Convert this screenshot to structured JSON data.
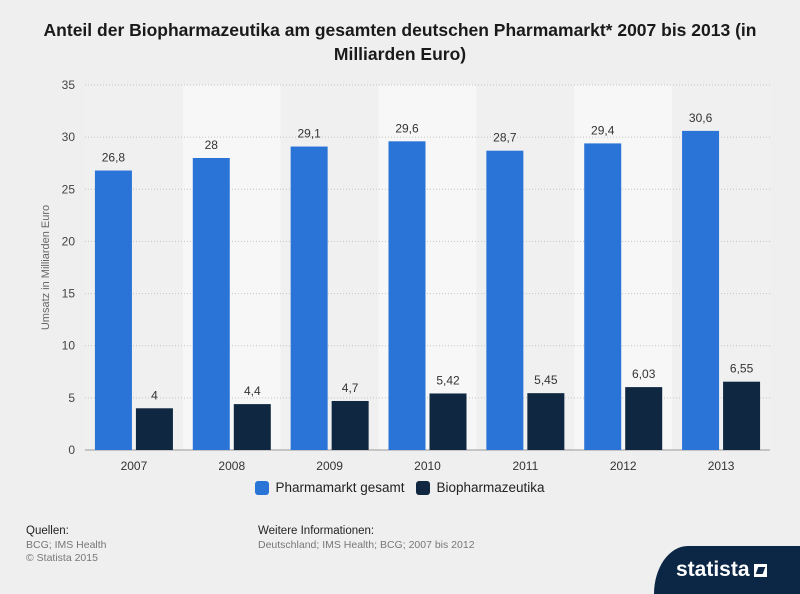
{
  "title": "Anteil der Biopharmazeutika am gesamten deutschen Pharmamarkt* 2007 bis 2013 (in Milliarden Euro)",
  "chart_data": {
    "type": "bar",
    "title": "Anteil der Biopharmazeutika am gesamten deutschen Pharmamarkt* 2007 bis 2013 (in Milliarden Euro)",
    "xlabel": "",
    "ylabel": "Umsatz in Milliarden Euro",
    "ylim": [
      0,
      35
    ],
    "yticks": [
      0,
      5,
      10,
      15,
      20,
      25,
      30,
      35
    ],
    "grid": true,
    "legend_position": "bottom",
    "categories": [
      "2007",
      "2008",
      "2009",
      "2010",
      "2011",
      "2012",
      "2013"
    ],
    "series": [
      {
        "name": "Pharmamarkt gesamt",
        "color": "#2a74d8",
        "values": [
          26.8,
          28,
          29.1,
          29.6,
          28.7,
          29.4,
          30.6
        ],
        "labels": [
          "26,8",
          "28",
          "29,1",
          "29,6",
          "28,7",
          "29,4",
          "30,6"
        ]
      },
      {
        "name": "Biopharmazeutika",
        "color": "#0f2740",
        "values": [
          4,
          4.4,
          4.7,
          5.42,
          5.45,
          6.03,
          6.55
        ],
        "labels": [
          "4",
          "4,4",
          "4,7",
          "5,42",
          "5,45",
          "6,03",
          "6,55"
        ]
      }
    ]
  },
  "footer": {
    "sources_heading": "Quellen:",
    "sources_lines": [
      "BCG; IMS Health",
      "© Statista 2015"
    ],
    "info_heading": "Weitere Informationen:",
    "info_lines": [
      "Deutschland; IMS Health; BCG; 2007 bis 2012"
    ]
  },
  "logo_text": "statista"
}
